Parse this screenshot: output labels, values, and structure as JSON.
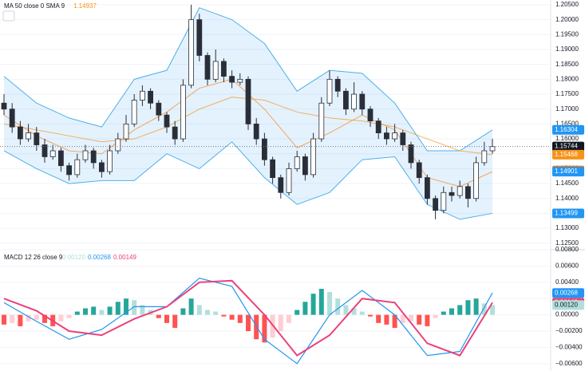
{
  "chart_data": {
    "type": "candlestick",
    "legend_ma": {
      "title": "MA 50 close 0 SMA 9",
      "value": 1.14937,
      "color": "#f7931a"
    },
    "legend_macd": {
      "title": "MACD 12 26 close 9",
      "histogram": {
        "value": 0.0012,
        "label": "0.00120"
      },
      "macd": 0.00268,
      "signal": 0.00149
    },
    "up_color": "#ffffff",
    "down_color": "#2a2e39",
    "wick_color": "#2a2e39",
    "candles": [
      [
        1.172,
        1.175,
        1.168,
        1.17
      ],
      [
        1.17,
        1.172,
        1.162,
        1.164
      ],
      [
        1.164,
        1.166,
        1.158,
        1.16
      ],
      [
        1.16,
        1.165,
        1.159,
        1.162
      ],
      [
        1.162,
        1.164,
        1.156,
        1.158
      ],
      [
        1.158,
        1.16,
        1.152,
        1.154
      ],
      [
        1.154,
        1.158,
        1.153,
        1.156
      ],
      [
        1.156,
        1.157,
        1.149,
        1.151
      ],
      [
        1.151,
        1.152,
        1.146,
        1.148
      ],
      [
        1.148,
        1.155,
        1.147,
        1.153
      ],
      [
        1.153,
        1.158,
        1.152,
        1.156
      ],
      [
        1.156,
        1.157,
        1.15,
        1.152
      ],
      [
        1.152,
        1.153,
        1.147,
        1.149
      ],
      [
        1.149,
        1.158,
        1.148,
        1.156
      ],
      [
        1.156,
        1.162,
        1.155,
        1.16
      ],
      [
        1.16,
        1.168,
        1.159,
        1.165
      ],
      [
        1.165,
        1.175,
        1.164,
        1.173
      ],
      [
        1.173,
        1.178,
        1.171,
        1.176
      ],
      [
        1.176,
        1.177,
        1.17,
        1.172
      ],
      [
        1.172,
        1.173,
        1.166,
        1.168
      ],
      [
        1.168,
        1.169,
        1.162,
        1.164
      ],
      [
        1.164,
        1.166,
        1.158,
        1.16
      ],
      [
        1.16,
        1.18,
        1.159,
        1.178
      ],
      [
        1.178,
        1.205,
        1.177,
        1.2
      ],
      [
        1.2,
        1.202,
        1.186,
        1.188
      ],
      [
        1.188,
        1.189,
        1.178,
        1.18
      ],
      [
        1.18,
        1.19,
        1.179,
        1.186
      ],
      [
        1.186,
        1.187,
        1.179,
        1.181
      ],
      [
        1.181,
        1.183,
        1.177,
        1.179
      ],
      [
        1.179,
        1.182,
        1.178,
        1.18
      ],
      [
        1.18,
        1.181,
        1.163,
        1.165
      ],
      [
        1.165,
        1.167,
        1.158,
        1.16
      ],
      [
        1.16,
        1.162,
        1.151,
        1.153
      ],
      [
        1.153,
        1.154,
        1.145,
        1.147
      ],
      [
        1.147,
        1.148,
        1.14,
        1.142
      ],
      [
        1.142,
        1.152,
        1.141,
        1.15
      ],
      [
        1.15,
        1.156,
        1.149,
        1.154
      ],
      [
        1.154,
        1.155,
        1.146,
        1.148
      ],
      [
        1.148,
        1.162,
        1.147,
        1.16
      ],
      [
        1.16,
        1.174,
        1.159,
        1.172
      ],
      [
        1.172,
        1.183,
        1.171,
        1.18
      ],
      [
        1.18,
        1.181,
        1.174,
        1.176
      ],
      [
        1.176,
        1.177,
        1.168,
        1.17
      ],
      [
        1.17,
        1.179,
        1.169,
        1.175
      ],
      [
        1.175,
        1.176,
        1.168,
        1.17
      ],
      [
        1.17,
        1.171,
        1.164,
        1.166
      ],
      [
        1.166,
        1.167,
        1.16,
        1.162
      ],
      [
        1.162,
        1.164,
        1.158,
        1.16
      ],
      [
        1.16,
        1.165,
        1.159,
        1.162
      ],
      [
        1.162,
        1.163,
        1.156,
        1.158
      ],
      [
        1.158,
        1.159,
        1.15,
        1.152
      ],
      [
        1.152,
        1.153,
        1.145,
        1.147
      ],
      [
        1.147,
        1.148,
        1.138,
        1.14
      ],
      [
        1.14,
        1.141,
        1.133,
        1.136
      ],
      [
        1.136,
        1.144,
        1.135,
        1.142
      ],
      [
        1.142,
        1.144,
        1.139,
        1.141
      ],
      [
        1.141,
        1.146,
        1.14,
        1.144
      ],
      [
        1.144,
        1.145,
        1.137,
        1.14
      ],
      [
        1.14,
        1.154,
        1.139,
        1.152
      ],
      [
        1.152,
        1.159,
        1.151,
        1.156
      ],
      [
        1.156,
        1.16,
        1.155,
        1.1574
      ]
    ],
    "line_x": [
      0,
      4,
      8,
      12,
      16,
      20,
      24,
      28,
      32,
      36,
      40,
      44,
      48,
      52,
      56,
      60
    ],
    "bands": {
      "fill": "rgba(33,150,243,0.12)",
      "color": "#4fb0e8",
      "upper": [
        1.181,
        1.172,
        1.167,
        1.164,
        1.18,
        1.183,
        1.204,
        1.2,
        1.192,
        1.176,
        1.183,
        1.182,
        1.172,
        1.156,
        1.156,
        1.163
      ],
      "lower": [
        1.156,
        1.15,
        1.145,
        1.146,
        1.146,
        1.155,
        1.15,
        1.159,
        1.147,
        1.138,
        1.142,
        1.153,
        1.154,
        1.138,
        1.133,
        1.135
      ],
      "basis": [
        1.168,
        1.161,
        1.156,
        1.155,
        1.163,
        1.169,
        1.177,
        1.18,
        1.17,
        1.157,
        1.162,
        1.168,
        1.163,
        1.147,
        1.144,
        1.149
      ]
    },
    "ma": [
      1.165,
      1.163,
      1.161,
      1.159,
      1.16,
      1.164,
      1.17,
      1.174,
      1.173,
      1.169,
      1.167,
      1.166,
      1.164,
      1.16,
      1.156,
      1.1547
    ],
    "ylim": [
      1.1228,
      1.2066
    ],
    "yticks": [
      {
        "value": 1.125,
        "label": "1.12500"
      },
      {
        "value": 1.13,
        "label": "1.13000"
      },
      {
        "value": 1.135,
        "label": "1.13500"
      },
      {
        "value": 1.14,
        "label": "1.14000"
      },
      {
        "value": 1.145,
        "label": "1.14500"
      },
      {
        "value": 1.15,
        "label": "1.15000"
      },
      {
        "value": 1.155,
        "label": "1.15500"
      },
      {
        "value": 1.16,
        "label": "1.16000"
      },
      {
        "value": 1.165,
        "label": "1.16500"
      },
      {
        "value": 1.17,
        "label": "1.17000"
      },
      {
        "value": 1.175,
        "label": "1.17500"
      },
      {
        "value": 1.18,
        "label": "1.18000"
      },
      {
        "value": 1.185,
        "label": "1.18500"
      },
      {
        "value": 1.19,
        "label": "1.19000"
      },
      {
        "value": 1.195,
        "label": "1.19500"
      },
      {
        "value": 1.2,
        "label": "1.20000"
      },
      {
        "value": 1.205,
        "label": "1.20500"
      }
    ],
    "price_labels": [
      {
        "value": 1.16304,
        "color": "#2196f3"
      },
      {
        "value": 1.15744,
        "color": "#131722"
      },
      {
        "value": 1.15468,
        "color": "#f7931a"
      },
      {
        "value": 1.14937,
        "color": "#f57c00"
      },
      {
        "value": 1.14901,
        "color": "#2196f3"
      },
      {
        "value": 1.13499,
        "color": "#2196f3"
      }
    ],
    "histogram": [
      -0.0012,
      -0.001,
      -0.0014,
      -0.0008,
      -0.0006,
      -0.001,
      -0.0014,
      -0.0008,
      -0.0004,
      0.0004,
      0.0008,
      0.001,
      0.0006,
      0.001,
      0.0016,
      0.002,
      0.0018,
      0.0012,
      0.0006,
      -0.0004,
      -0.001,
      -0.0016,
      0.0008,
      0.002,
      0.0012,
      0.0006,
      0.0004,
      -0.0002,
      -0.0006,
      -0.001,
      -0.002,
      -0.003,
      -0.0034,
      -0.0028,
      -0.002,
      -0.001,
      0.0006,
      0.0016,
      0.0026,
      0.0032,
      0.0028,
      0.002,
      0.0012,
      0.0008,
      0.0004,
      -0.0002,
      -0.001,
      -0.0012,
      -0.0016,
      -0.001,
      -0.0008,
      -0.0012,
      -0.0014,
      -0.0004,
      0.0004,
      0.0008,
      0.0012,
      0.0018,
      0.002,
      0.0014,
      0.0012
    ],
    "hist_colors": [
      "#26a69a",
      "#b2dfdb",
      "#ff5252",
      "#ffcdd2"
    ],
    "macd_line": {
      "color": "#2196f3",
      "values": [
        0.0015,
        -0.0008,
        -0.003,
        -0.0018,
        0.001,
        0.001,
        0.0045,
        0.0035,
        -0.003,
        -0.006,
        0.0,
        0.003,
        0.0,
        -0.005,
        -0.0045,
        0.0027
      ]
    },
    "signal_line": {
      "color": "#ec407a",
      "values": [
        0.002,
        0.0005,
        -0.002,
        -0.0025,
        -0.0005,
        0.001,
        0.004,
        0.0042,
        0.0,
        -0.005,
        -0.0025,
        0.002,
        0.0015,
        -0.0035,
        -0.005,
        0.0015
      ]
    },
    "y2lim": [
      -0.0069,
      0.008
    ],
    "y2ticks": [
      {
        "value": 0.008,
        "label": "0.00800"
      },
      {
        "value": 0.006,
        "label": "0.00600"
      },
      {
        "value": 0.004,
        "label": "0.00400"
      },
      {
        "value": 0.002,
        "label": "0.00200"
      },
      {
        "value": 0,
        "label": "0.00000"
      },
      {
        "value": -0.002,
        "label": "−0.00200"
      },
      {
        "value": -0.004,
        "label": "−0.00400"
      },
      {
        "value": -0.006,
        "label": "−0.00600"
      }
    ],
    "macd_labels": [
      {
        "value": 0.00268,
        "color": "#2196f3"
      },
      {
        "value": 0.00149,
        "color": "#ec407a"
      },
      {
        "value": {
          "value": 0.0012,
          "label": "0.00120"
        },
        "color": "#b2dfdb"
      }
    ]
  }
}
